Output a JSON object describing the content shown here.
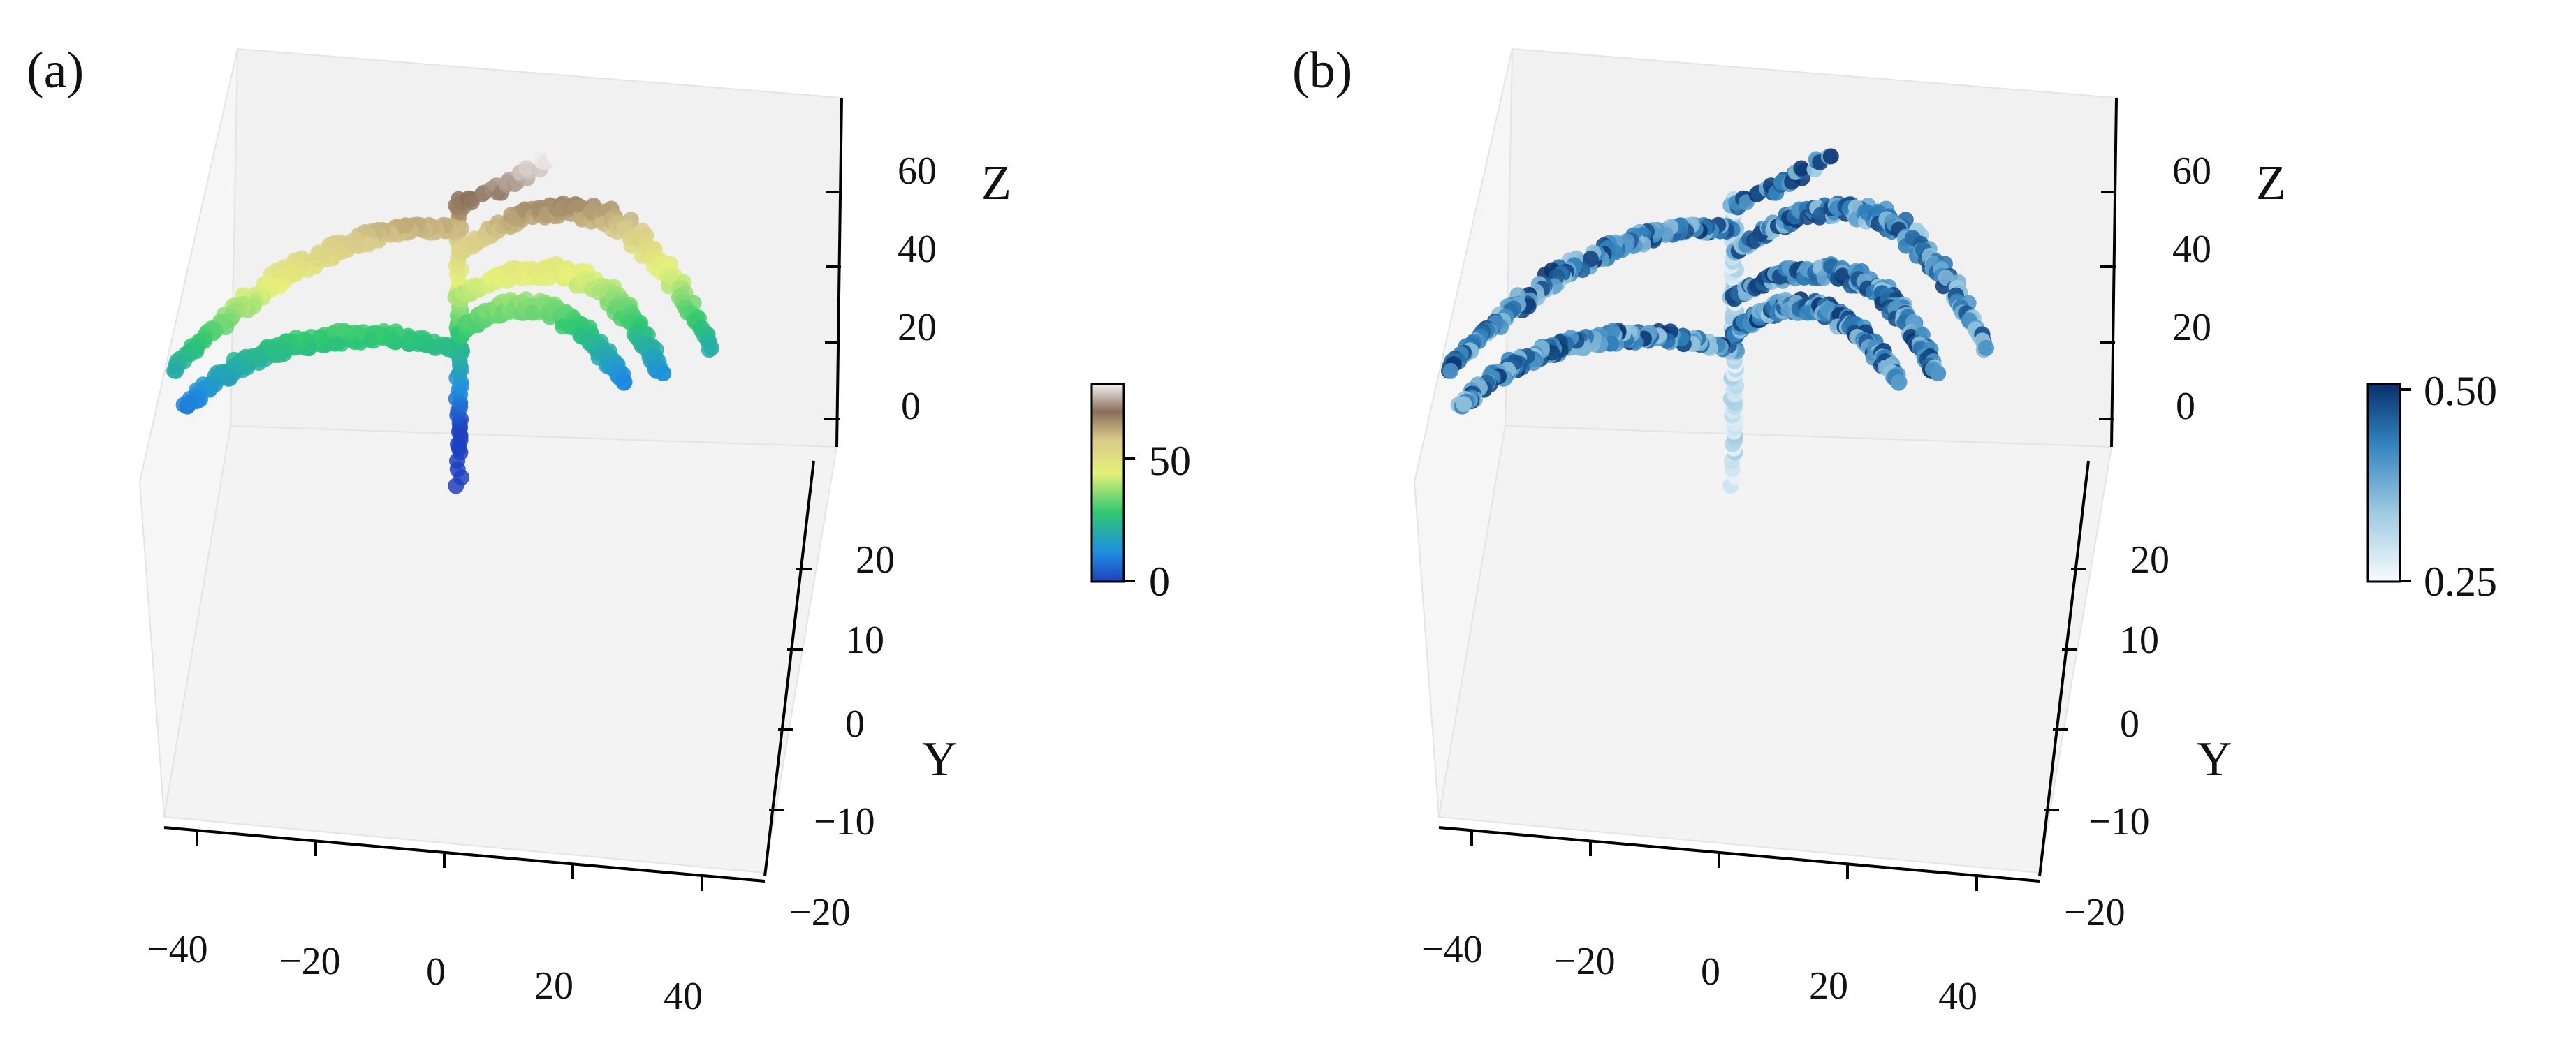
{
  "chart_data": [
    {
      "panel_label": "(a)",
      "type": "scatter3d",
      "axes": {
        "x": {
          "ticks": [
            "−40",
            "−20",
            "0",
            "20",
            "40"
          ],
          "range": [
            -50,
            50
          ]
        },
        "y": {
          "label": "Y",
          "ticks": [
            "20",
            "10",
            "0",
            "−10",
            "−20"
          ],
          "range": [
            -20,
            25
          ]
        },
        "z": {
          "label": "Z",
          "ticks": [
            "60",
            "40",
            "20",
            "0"
          ],
          "range": [
            -20,
            70
          ]
        }
      },
      "grid": false,
      "colormap": "terrain",
      "colorbar": {
        "ticks": [
          "50",
          "0"
        ],
        "range": [
          0,
          70
        ]
      },
      "point_color_encoding": "height",
      "structure": {
        "stem": {
          "x": [
            2,
            2
          ],
          "z": [
            -16,
            60
          ]
        },
        "leaves": [
          {
            "side": "left",
            "start": [
              2,
              52
            ],
            "peak": [
              -22,
              46
            ],
            "end": [
              -46,
              18
            ]
          },
          {
            "side": "left",
            "start": [
              2,
              20
            ],
            "peak": [
              -24,
              24
            ],
            "end": [
              -44,
              8
            ]
          },
          {
            "side": "right",
            "start": [
              2,
              46
            ],
            "peak": [
              26,
              54
            ],
            "end": [
              44,
              18
            ]
          },
          {
            "side": "right",
            "start": [
              2,
              34
            ],
            "peak": [
              22,
              38
            ],
            "end": [
              36,
              12
            ]
          },
          {
            "side": "right",
            "start": [
              2,
              24
            ],
            "peak": [
              16,
              30
            ],
            "end": [
              30,
              10
            ]
          },
          {
            "side": "top",
            "start": [
              2,
              58
            ],
            "peak": [
              10,
              64
            ],
            "end": [
              18,
              70
            ]
          }
        ]
      }
    },
    {
      "panel_label": "(b)",
      "type": "scatter3d",
      "axes": {
        "x": {
          "ticks": [
            "−40",
            "−20",
            "0",
            "20",
            "40"
          ],
          "range": [
            -50,
            50
          ]
        },
        "y": {
          "label": "Y",
          "ticks": [
            "20",
            "10",
            "0",
            "−10",
            "−20"
          ],
          "range": [
            -20,
            25
          ]
        },
        "z": {
          "label": "Z",
          "ticks": [
            "60",
            "40",
            "20",
            "0"
          ],
          "range": [
            -20,
            70
          ]
        }
      },
      "grid": false,
      "colormap": "Blues",
      "colorbar": {
        "ticks": [
          "0.50",
          "0.25"
        ],
        "range": [
          0.25,
          0.5
        ]
      },
      "point_color_encoding": "scalar",
      "structure": "same points as (a)"
    }
  ]
}
